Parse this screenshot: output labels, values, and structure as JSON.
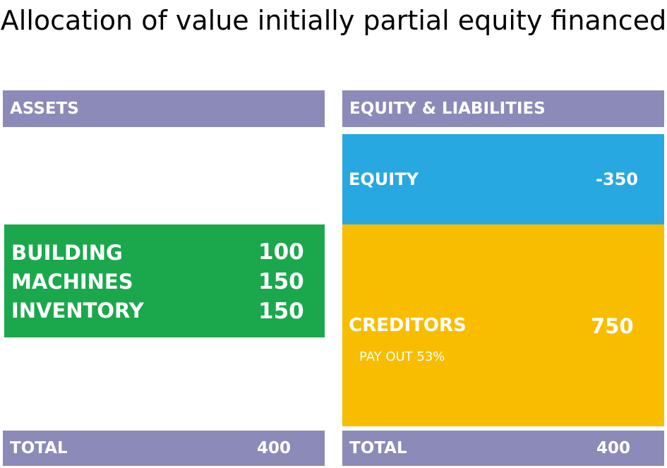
{
  "title": "Allocation of value initially partial equity financed",
  "assets": {
    "header": "ASSETS",
    "items": [
      {
        "label": "BUILDING",
        "value": "100"
      },
      {
        "label": "MACHINES",
        "value": "150"
      },
      {
        "label": "INVENTORY",
        "value": "150"
      }
    ],
    "total_label": "TOTAL",
    "total_value": "400"
  },
  "liabilities": {
    "header": "EQUITY & LIABILITIES",
    "equity_label": "EQUITY",
    "equity_value": "-350",
    "creditors_label": "CREDITORS",
    "creditors_value": "750",
    "creditors_note": "PAY OUT 53%",
    "total_label": "TOTAL",
    "total_value": "400"
  },
  "colors": {
    "header_bar": "#8B8AB8",
    "assets_block": "#1BA84C",
    "equity_block": "#28A8E0",
    "creditors_block": "#F9BD00"
  }
}
